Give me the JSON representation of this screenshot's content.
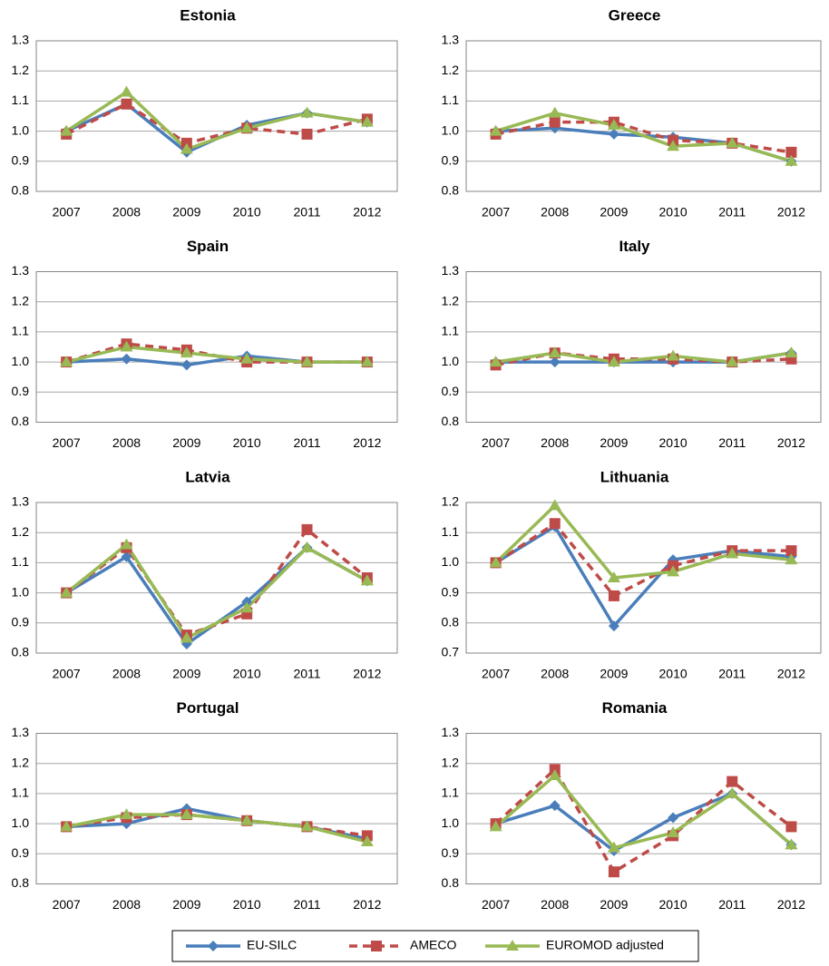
{
  "chart_data": [
    {
      "type": "line",
      "title": "Estonia",
      "categories": [
        "2007",
        "2008",
        "2009",
        "2010",
        "2011",
        "2012"
      ],
      "ylim": [
        0.8,
        1.3
      ],
      "yticks": [
        0.8,
        0.9,
        {
          "value": 1,
          "label": "1.0"
        },
        1.1,
        1.2,
        1.3
      ],
      "grid": true,
      "series": [
        {
          "name": "EU-SILC",
          "color": "#4a7ebb",
          "values": [
            1.0,
            1.09,
            0.93,
            1.02,
            1.06,
            1.03
          ]
        },
        {
          "name": "AMECO",
          "color": "#be4b48",
          "values": [
            0.99,
            1.09,
            0.96,
            1.01,
            0.99,
            1.04
          ]
        },
        {
          "name": "EUROMOD adjusted",
          "color": "#98b954",
          "values": [
            1.0,
            1.13,
            0.94,
            1.01,
            1.06,
            1.03
          ]
        }
      ]
    },
    {
      "type": "line",
      "title": "Greece",
      "categories": [
        "2007",
        "2008",
        "2009",
        "2010",
        "2011",
        "2012"
      ],
      "ylim": [
        0.8,
        1.3
      ],
      "yticks": [
        0.8,
        0.9,
        {
          "value": 1,
          "label": "1.0"
        },
        1.1,
        1.2,
        1.3
      ],
      "grid": true,
      "series": [
        {
          "name": "EU-SILC",
          "color": "#4a7ebb",
          "values": [
            1.0,
            1.01,
            0.99,
            0.98,
            0.96,
            0.9
          ]
        },
        {
          "name": "AMECO",
          "color": "#be4b48",
          "values": [
            0.99,
            1.03,
            1.03,
            0.97,
            0.96,
            0.93
          ]
        },
        {
          "name": "EUROMOD adjusted",
          "color": "#98b954",
          "values": [
            1.0,
            1.06,
            1.02,
            0.95,
            0.96,
            0.9
          ]
        }
      ]
    },
    {
      "type": "line",
      "title": "Spain",
      "categories": [
        "2007",
        "2008",
        "2009",
        "2010",
        "2011",
        "2012"
      ],
      "ylim": [
        0.8,
        1.3
      ],
      "yticks": [
        0.8,
        0.9,
        {
          "value": 1,
          "label": "1.0"
        },
        1.1,
        1.2,
        1.3
      ],
      "grid": true,
      "series": [
        {
          "name": "EU-SILC",
          "color": "#4a7ebb",
          "values": [
            1.0,
            1.01,
            0.99,
            1.02,
            1.0,
            1.0
          ]
        },
        {
          "name": "AMECO",
          "color": "#be4b48",
          "values": [
            1.0,
            1.06,
            1.04,
            1.0,
            1.0,
            1.0
          ]
        },
        {
          "name": "EUROMOD adjusted",
          "color": "#98b954",
          "values": [
            1.0,
            1.05,
            1.03,
            1.01,
            1.0,
            1.0
          ]
        }
      ]
    },
    {
      "type": "line",
      "title": "Italy",
      "categories": [
        "2007",
        "2008",
        "2009",
        "2010",
        "2011",
        "2012"
      ],
      "ylim": [
        0.8,
        1.3
      ],
      "yticks": [
        0.8,
        0.9,
        {
          "value": 1,
          "label": "1.0"
        },
        1.1,
        1.2,
        1.3
      ],
      "grid": true,
      "series": [
        {
          "name": "EU-SILC",
          "color": "#4a7ebb",
          "values": [
            1.0,
            1.0,
            1.0,
            1.0,
            1.0,
            1.03
          ]
        },
        {
          "name": "AMECO",
          "color": "#be4b48",
          "values": [
            0.99,
            1.03,
            1.01,
            1.01,
            1.0,
            1.01
          ]
        },
        {
          "name": "EUROMOD adjusted",
          "color": "#98b954",
          "values": [
            1.0,
            1.03,
            1.0,
            1.02,
            1.0,
            1.03
          ]
        }
      ]
    },
    {
      "type": "line",
      "title": "Latvia",
      "categories": [
        "2007",
        "2008",
        "2009",
        "2010",
        "2011",
        "2012"
      ],
      "ylim": [
        0.8,
        1.3
      ],
      "yticks": [
        0.8,
        0.9,
        {
          "value": 1,
          "label": "1.0"
        },
        1.1,
        1.2,
        1.3
      ],
      "grid": true,
      "series": [
        {
          "name": "EU-SILC",
          "color": "#4a7ebb",
          "values": [
            1.0,
            1.12,
            0.83,
            0.97,
            1.15,
            1.04
          ]
        },
        {
          "name": "AMECO",
          "color": "#be4b48",
          "values": [
            1.0,
            1.15,
            0.86,
            0.93,
            1.21,
            1.05
          ]
        },
        {
          "name": "EUROMOD adjusted",
          "color": "#98b954",
          "values": [
            1.0,
            1.16,
            0.85,
            0.95,
            1.15,
            1.04
          ]
        }
      ]
    },
    {
      "type": "line",
      "title": "Lithuania",
      "categories": [
        "2007",
        "2008",
        "2009",
        "2010",
        "2011",
        "2012"
      ],
      "ylim": [
        0.7,
        1.2
      ],
      "yticks": [
        0.7,
        0.8,
        0.9,
        {
          "value": 1,
          "label": "1.0"
        },
        1.1,
        1.2
      ],
      "grid": true,
      "series": [
        {
          "name": "EU-SILC",
          "color": "#4a7ebb",
          "values": [
            1.0,
            1.12,
            0.79,
            1.01,
            1.04,
            1.02
          ]
        },
        {
          "name": "AMECO",
          "color": "#be4b48",
          "values": [
            1.0,
            1.13,
            0.89,
            0.99,
            1.04,
            1.04
          ]
        },
        {
          "name": "EUROMOD adjusted",
          "color": "#98b954",
          "values": [
            1.0,
            1.19,
            0.95,
            0.97,
            1.03,
            1.01
          ]
        }
      ]
    },
    {
      "type": "line",
      "title": "Portugal",
      "categories": [
        "2007",
        "2008",
        "2009",
        "2010",
        "2011",
        "2012"
      ],
      "ylim": [
        0.8,
        1.3
      ],
      "yticks": [
        0.8,
        0.9,
        {
          "value": 1,
          "label": "1.0"
        },
        1.1,
        1.2,
        1.3
      ],
      "grid": true,
      "series": [
        {
          "name": "EU-SILC",
          "color": "#4a7ebb",
          "values": [
            0.99,
            1.0,
            1.05,
            1.01,
            0.99,
            0.95
          ]
        },
        {
          "name": "AMECO",
          "color": "#be4b48",
          "values": [
            0.99,
            1.02,
            1.03,
            1.01,
            0.99,
            0.96
          ]
        },
        {
          "name": "EUROMOD adjusted",
          "color": "#98b954",
          "values": [
            0.99,
            1.03,
            1.03,
            1.01,
            0.99,
            0.94
          ]
        }
      ]
    },
    {
      "type": "line",
      "title": "Romania",
      "categories": [
        "2007",
        "2008",
        "2009",
        "2010",
        "2011",
        "2012"
      ],
      "ylim": [
        0.8,
        1.3
      ],
      "yticks": [
        0.8,
        0.9,
        {
          "value": 1,
          "label": "1.0"
        },
        1.1,
        1.2,
        1.3
      ],
      "grid": true,
      "series": [
        {
          "name": "EU-SILC",
          "color": "#4a7ebb",
          "values": [
            1.0,
            1.06,
            0.91,
            1.02,
            1.1,
            0.93
          ]
        },
        {
          "name": "AMECO",
          "color": "#be4b48",
          "values": [
            1.0,
            1.18,
            0.84,
            0.96,
            1.14,
            0.99
          ]
        },
        {
          "name": "EUROMOD adjusted",
          "color": "#98b954",
          "values": [
            0.99,
            1.16,
            0.92,
            0.97,
            1.1,
            0.93
          ]
        }
      ]
    }
  ]
}
